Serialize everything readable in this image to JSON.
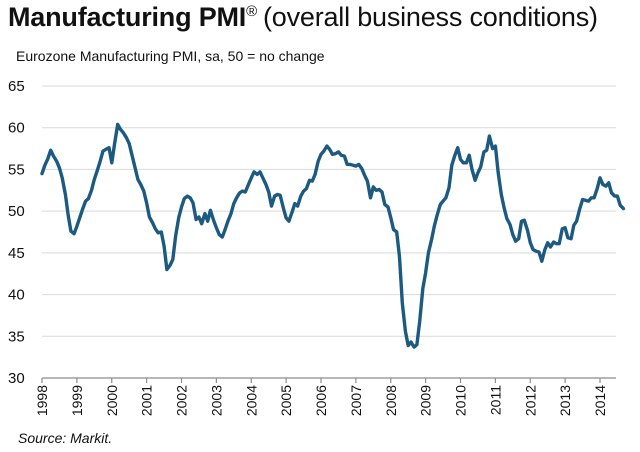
{
  "title": {
    "bold": "Manufacturing PMI",
    "mark": "®",
    "rest": "(overall business conditions)"
  },
  "subtitle": "Eurozone Manufacturing PMI, sa, 50 = no change",
  "source": "Source: Markit.",
  "colors": {
    "line": "#1d5a82",
    "grid": "#d9d9d9",
    "axis": "#8c8c8c"
  },
  "chart_data": {
    "type": "line",
    "title": "Manufacturing PMI® (overall business conditions)",
    "subtitle": "Eurozone Manufacturing PMI, sa, 50 = no change",
    "xlabel": "",
    "ylabel": "",
    "xlim": [
      1998,
      2014.75
    ],
    "ylim": [
      30,
      65
    ],
    "yticks": [
      30,
      35,
      40,
      45,
      50,
      55,
      60,
      65
    ],
    "ytick_labels": [
      "30",
      "35",
      "40",
      "45",
      "50",
      "55",
      "60",
      "65"
    ],
    "xticks": [
      1998,
      1999,
      2000,
      2001,
      2002,
      2003,
      2004,
      2005,
      2006,
      2007,
      2008,
      2009,
      2010,
      2011,
      2012,
      2013,
      2014
    ],
    "xtick_labels": [
      "1998",
      "1999",
      "2000",
      "2001",
      "2002",
      "2003",
      "2004",
      "2005",
      "2006",
      "2007",
      "2008",
      "2009",
      "2010",
      "2011",
      "2012",
      "2013",
      "2014"
    ],
    "grid": "horizontal",
    "legend": "none",
    "series": [
      {
        "name": "Eurozone Manufacturing PMI",
        "x": [
          1998.0,
          1998.08,
          1998.17,
          1998.25,
          1998.33,
          1998.42,
          1998.5,
          1998.58,
          1998.67,
          1998.75,
          1998.83,
          1998.92,
          1999.0,
          1999.08,
          1999.17,
          1999.25,
          1999.33,
          1999.42,
          1999.5,
          1999.58,
          1999.67,
          1999.75,
          1999.83,
          1999.92,
          2000.0,
          2000.08,
          2000.17,
          2000.25,
          2000.33,
          2000.42,
          2000.5,
          2000.58,
          2000.67,
          2000.75,
          2000.83,
          2000.92,
          2001.0,
          2001.08,
          2001.17,
          2001.25,
          2001.33,
          2001.42,
          2001.5,
          2001.58,
          2001.67,
          2001.75,
          2001.83,
          2001.92,
          2002.0,
          2002.08,
          2002.17,
          2002.25,
          2002.33,
          2002.42,
          2002.5,
          2002.58,
          2002.67,
          2002.75,
          2002.83,
          2002.92,
          2003.0,
          2003.08,
          2003.17,
          2003.25,
          2003.33,
          2003.42,
          2003.5,
          2003.58,
          2003.67,
          2003.75,
          2003.83,
          2003.92,
          2004.0,
          2004.08,
          2004.17,
          2004.25,
          2004.33,
          2004.42,
          2004.5,
          2004.58,
          2004.67,
          2004.75,
          2004.83,
          2004.92,
          2005.0,
          2005.08,
          2005.17,
          2005.25,
          2005.33,
          2005.42,
          2005.5,
          2005.58,
          2005.67,
          2005.75,
          2005.83,
          2005.92,
          2006.0,
          2006.08,
          2006.17,
          2006.25,
          2006.33,
          2006.42,
          2006.5,
          2006.58,
          2006.67,
          2006.75,
          2006.83,
          2006.92,
          2007.0,
          2007.08,
          2007.17,
          2007.25,
          2007.33,
          2007.42,
          2007.5,
          2007.58,
          2007.67,
          2007.75,
          2007.83,
          2007.92,
          2008.0,
          2008.08,
          2008.17,
          2008.25,
          2008.33,
          2008.42,
          2008.5,
          2008.58,
          2008.67,
          2008.75,
          2008.83,
          2008.92,
          2009.0,
          2009.08,
          2009.17,
          2009.25,
          2009.33,
          2009.42,
          2009.5,
          2009.58,
          2009.67,
          2009.75,
          2009.83,
          2009.92,
          2010.0,
          2010.08,
          2010.17,
          2010.25,
          2010.33,
          2010.42,
          2010.5,
          2010.58,
          2010.67,
          2010.75,
          2010.83,
          2010.92,
          2011.0,
          2011.08,
          2011.17,
          2011.25,
          2011.33,
          2011.42,
          2011.5,
          2011.58,
          2011.67,
          2011.75,
          2011.83,
          2011.92,
          2012.0,
          2012.08,
          2012.17,
          2012.25,
          2012.33,
          2012.42,
          2012.5,
          2012.58,
          2012.67,
          2012.75,
          2012.83,
          2012.92,
          2013.0,
          2013.08,
          2013.17,
          2013.25,
          2013.33,
          2013.42,
          2013.5,
          2013.58,
          2013.67,
          2013.75,
          2013.83,
          2013.92,
          2014.0,
          2014.08,
          2014.17,
          2014.25,
          2014.33,
          2014.42,
          2014.5,
          2014.58,
          2014.67
        ],
        "values": [
          54.5,
          55.5,
          56.3,
          57.3,
          56.6,
          56.0,
          55.2,
          54.0,
          52.0,
          49.5,
          47.6,
          47.3,
          48.2,
          49.2,
          50.3,
          51.2,
          51.5,
          52.5,
          53.8,
          54.8,
          56.0,
          57.2,
          57.4,
          57.6,
          55.8,
          58.0,
          60.4,
          59.8,
          59.4,
          58.8,
          58.1,
          56.7,
          55.2,
          53.8,
          53.2,
          52.4,
          51.0,
          49.3,
          48.6,
          47.9,
          47.4,
          47.5,
          45.8,
          43.0,
          43.5,
          44.2,
          47.0,
          49.2,
          50.5,
          51.5,
          51.8,
          51.6,
          51.0,
          49.0,
          49.3,
          48.5,
          49.7,
          48.8,
          50.1,
          48.9,
          48.0,
          47.2,
          46.9,
          47.8,
          48.8,
          49.7,
          50.9,
          51.6,
          52.2,
          52.4,
          52.3,
          53.2,
          54.0,
          54.7,
          54.4,
          54.7,
          54.0,
          53.2,
          52.3,
          50.6,
          51.8,
          52.0,
          51.9,
          50.4,
          49.2,
          48.8,
          49.9,
          50.9,
          50.6,
          51.8,
          52.4,
          52.7,
          53.7,
          53.6,
          54.4,
          56.0,
          56.8,
          57.2,
          57.8,
          57.4,
          56.8,
          56.9,
          57.1,
          56.7,
          56.6,
          55.6,
          55.6,
          55.5,
          55.4,
          55.6,
          55.1,
          54.3,
          53.6,
          51.6,
          52.9,
          52.5,
          52.6,
          52.3,
          50.8,
          50.5,
          49.2,
          47.8,
          47.5,
          44.5,
          39.0,
          35.6,
          33.9,
          34.3,
          33.7,
          34.0,
          36.8,
          40.7,
          42.6,
          45.0,
          46.6,
          48.2,
          49.5,
          50.8,
          51.2,
          51.6,
          52.8,
          55.5,
          56.6,
          57.6,
          56.2,
          55.8,
          55.8,
          56.7,
          55.0,
          53.7,
          54.6,
          55.3,
          57.1,
          57.3,
          59.0,
          57.5,
          57.8,
          54.6,
          52.0,
          50.4,
          49.1,
          48.4,
          47.2,
          46.4,
          46.7,
          48.8,
          48.9,
          47.7,
          46.2,
          45.4,
          45.2,
          45.1,
          44.0,
          45.4,
          46.2,
          45.7,
          46.3,
          46.1,
          46.1,
          47.9,
          48.0,
          46.8,
          46.7,
          48.3,
          48.8,
          50.3,
          51.4,
          51.3,
          51.2,
          51.6,
          51.6,
          52.7,
          54.0,
          53.2,
          53.0,
          53.4,
          52.2,
          51.8,
          51.8,
          50.7,
          50.3
        ]
      }
    ]
  }
}
